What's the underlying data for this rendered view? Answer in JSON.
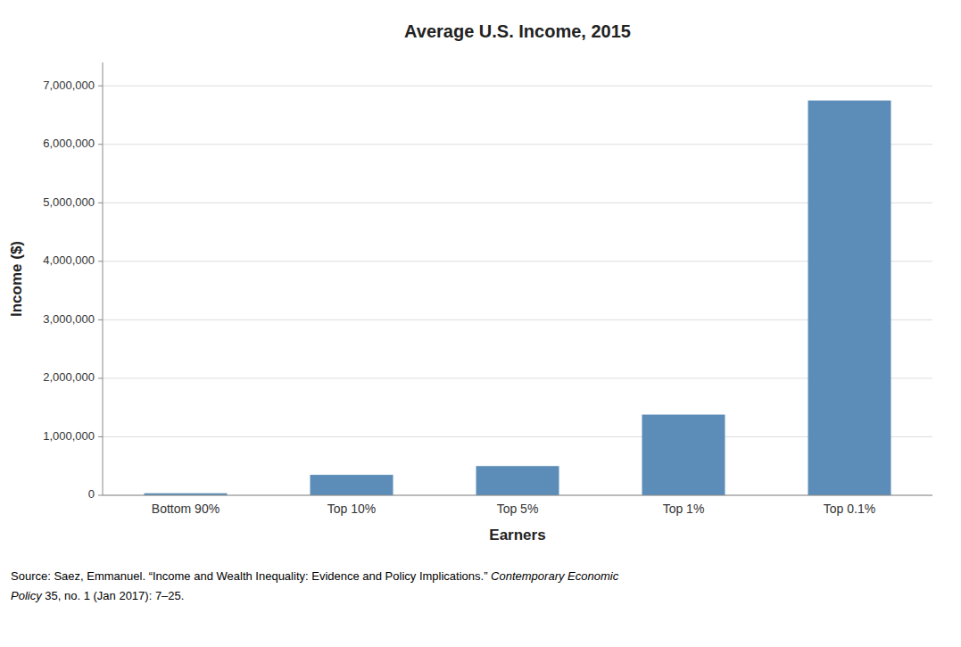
{
  "chart_data": {
    "type": "bar",
    "title": "Average U.S. Income, 2015",
    "categories": [
      "Bottom 90%",
      "Top 10%",
      "Top 5%",
      "Top 1%",
      "Top 0.1%"
    ],
    "values": [
      35000,
      350000,
      500000,
      1380000,
      6750000
    ],
    "color": "#5b8db8",
    "x_label": "Earners",
    "y_label": "Income ($)",
    "ylim": [
      0,
      7400000
    ],
    "yticks": [
      0,
      {
        "value": 1000000,
        "label": "1,000,000"
      },
      {
        "value": 2000000,
        "label": "2,000,000"
      },
      {
        "value": 3000000,
        "label": "3,000,000"
      },
      {
        "value": 4000000,
        "label": "4,000,000"
      },
      {
        "value": 5000000,
        "label": "5,000,000"
      },
      {
        "value": 6000000,
        "label": "6,000,000"
      },
      {
        "value": 7000000,
        "label": "7,000,000"
      }
    ],
    "grid": true,
    "annotations": [
      "Source: Saez, Emmanuel. “Income and Wealth Inequality: Evidence and Policy Implications.” ",
      "Contemporary Economic",
      "Policy",
      " 35, no. 1 (Jan 2017): 7–25."
    ]
  }
}
